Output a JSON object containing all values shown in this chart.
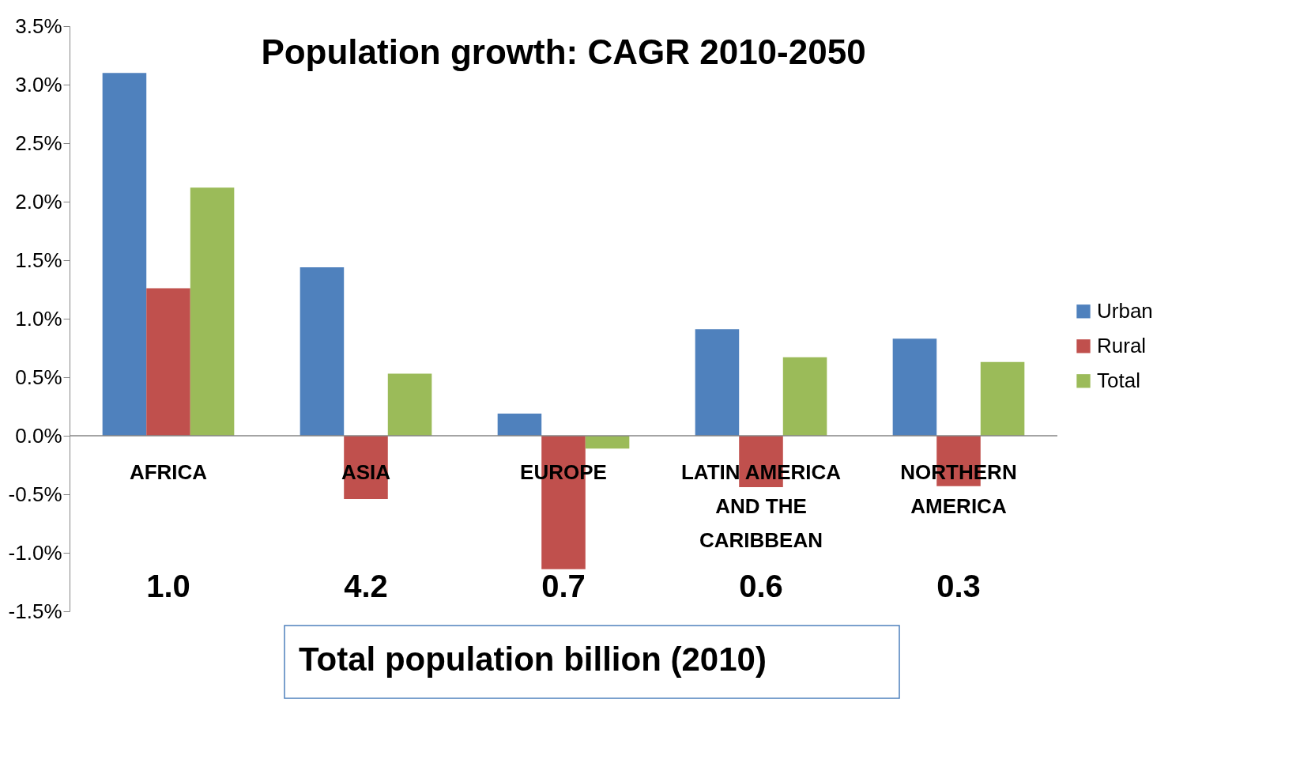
{
  "chart_data": {
    "type": "bar",
    "title": "Population growth: CAGR 2010-2050",
    "categories": [
      "AFRICA",
      "ASIA",
      "EUROPE",
      "LATIN AMERICA AND THE CARIBBEAN",
      "NORTHERN AMERICA"
    ],
    "series": [
      {
        "name": "Urban",
        "color": "#4f81bd",
        "values": [
          3.1,
          1.44,
          0.19,
          0.91,
          0.83
        ]
      },
      {
        "name": "Rural",
        "color": "#c0504d",
        "values": [
          1.26,
          -0.54,
          -1.14,
          -0.44,
          -0.43
        ]
      },
      {
        "name": "Total",
        "color": "#9bbb59",
        "values": [
          2.12,
          0.53,
          -0.11,
          0.67,
          0.63
        ]
      }
    ],
    "ylim": [
      -1.5,
      3.5
    ],
    "yticks": [
      {
        "value": -1.5,
        "label": "-1.5%"
      },
      {
        "value": -1.0,
        "label": "-1.0%"
      },
      {
        "value": -0.5,
        "label": "-0.5%"
      },
      {
        "value": 0,
        "label": "0.0%"
      },
      {
        "value": 0.5,
        "label": "0.5%"
      },
      {
        "value": 1.0,
        "label": "1.0%"
      },
      {
        "value": 1.5,
        "label": "1.5%"
      },
      {
        "value": 2.0,
        "label": "2.0%"
      },
      {
        "value": 2.5,
        "label": "2.5%"
      },
      {
        "value": 3.0,
        "label": "3.0%"
      },
      {
        "value": 3.5,
        "label": "3.5%"
      }
    ],
    "annotations": [
      "1.0",
      "4.2",
      "0.7",
      "0.6",
      "0.3",
      "Total population  billion (2010)"
    ],
    "grid": false,
    "legend": "right"
  }
}
